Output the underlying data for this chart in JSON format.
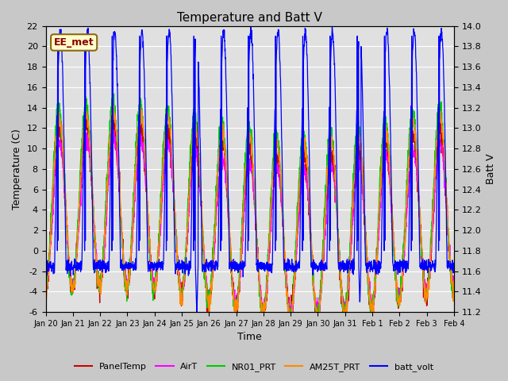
{
  "title": "Temperature and Batt V",
  "xlabel": "Time",
  "ylabel_left": "Temperature (C)",
  "ylabel_right": "Batt V",
  "annotation": "EE_met",
  "left_ylim": [
    -6,
    22
  ],
  "right_ylim": [
    11.2,
    14.0
  ],
  "left_yticks": [
    -6,
    -4,
    -2,
    0,
    2,
    4,
    6,
    8,
    10,
    12,
    14,
    16,
    18,
    20,
    22
  ],
  "right_yticks": [
    11.2,
    11.4,
    11.6,
    11.8,
    12.0,
    12.2,
    12.4,
    12.6,
    12.8,
    13.0,
    13.2,
    13.4,
    13.6,
    13.8,
    14.0
  ],
  "xtick_labels": [
    "Jan 20",
    "Jan 21",
    "Jan 22",
    "Jan 23",
    "Jan 24",
    "Jan 25",
    "Jan 26",
    "Jan 27",
    "Jan 28",
    "Jan 29",
    "Jan 30",
    "Jan 31",
    "Feb 1",
    "Feb 2",
    "Feb 3",
    "Feb 4"
  ],
  "colors": {
    "PanelTemp": "#cc0000",
    "AirT": "#ff00ff",
    "NR01_PRT": "#00cc00",
    "AM25T_PRT": "#ff8800",
    "batt_volt": "#0000ff"
  },
  "legend_labels": [
    "PanelTemp",
    "AirT",
    "NR01_PRT",
    "AM25T_PRT",
    "batt_volt"
  ],
  "fig_bg_color": "#c8c8c8",
  "plot_bg_color": "#e0e0e0",
  "seed": 12345
}
